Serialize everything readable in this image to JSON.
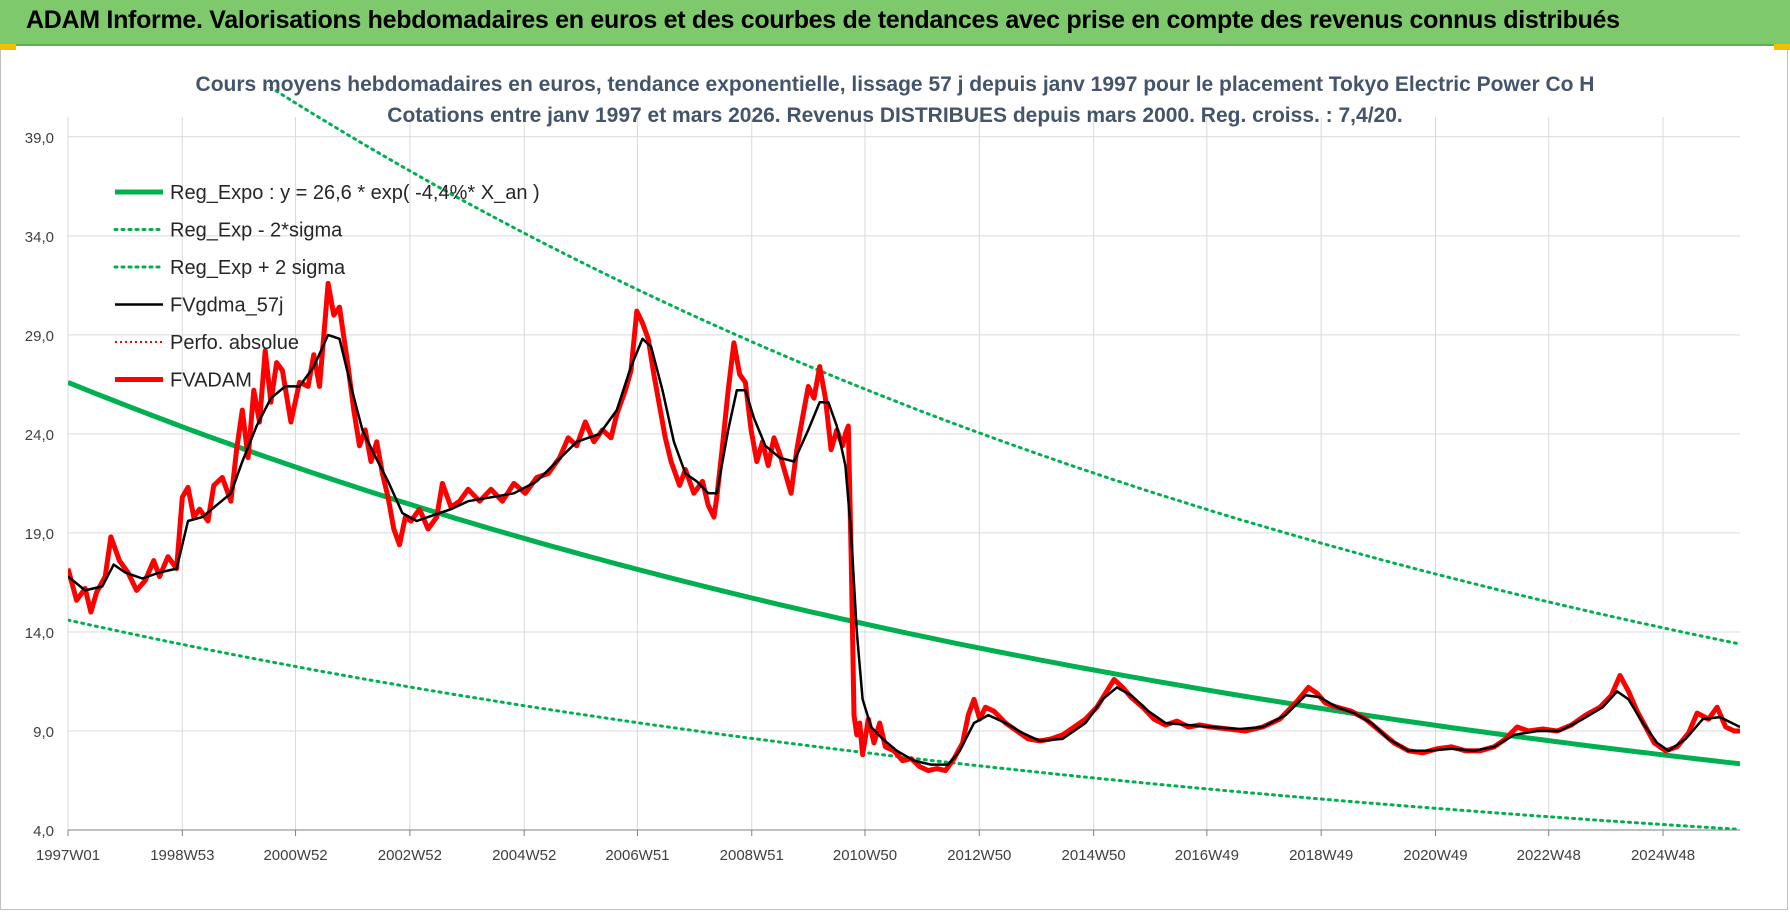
{
  "banner": {
    "title": "ADAM Informe. Valorisations hebdomadaires en euros et des courbes de tendances avec prise en compte des revenus connus distribués"
  },
  "colors": {
    "banner": "#7dc96b",
    "regression": "#00b050",
    "smoothed": "#000000",
    "fvadam": "#ff0000",
    "title": "#44546a"
  },
  "chart_data": {
    "type": "line",
    "title": "Cours moyens hebdomadaires en euros, tendance exponentielle, lissage 57 j depuis janv 1997 pour le placement Tokyo Electric Power Co H",
    "subtitle": "Cotations entre janv 1997 et mars 2026. Revenus DISTRIBUES depuis mars 2000. Reg. croiss. : 7,4/20.",
    "x_range": [
      1997.0,
      2026.25
    ],
    "ylim": [
      4,
      40
    ],
    "y_ticks": [
      "4,0",
      "9,0",
      "14,0",
      "19,0",
      "24,0",
      "29,0",
      "34,0",
      "39,0"
    ],
    "x_ticks": [
      "1997W01",
      "1998W53",
      "2000W52",
      "2002W52",
      "2004W52",
      "2006W51",
      "2008W51",
      "2010W50",
      "2012W50",
      "2014W50",
      "2016W49",
      "2018W49",
      "2020W49",
      "2022W48",
      "2024W48"
    ],
    "grid": true,
    "legend_position": "top-left",
    "series": [
      {
        "name": "Reg_Expo : y = 26,6 * exp( -4,4%* X_an )",
        "style": "solid-thick",
        "color": "#00b050",
        "formula": {
          "a": 26.6,
          "rate": -0.044,
          "x0": 1997.0
        }
      },
      {
        "name": "Reg_Exp - 2*sigma",
        "style": "dotted",
        "color": "#00b050",
        "formula": {
          "a": 14.6,
          "rate": -0.044,
          "x0": 1997.0
        }
      },
      {
        "name": "Reg_Exp + 2 sigma",
        "style": "dotted",
        "color": "#00b050",
        "formula": {
          "a": 48.5,
          "rate": -0.044,
          "x0": 1997.0
        }
      },
      {
        "name": "FVgdma_57j",
        "style": "solid",
        "color": "#000000"
      },
      {
        "name": "Perfo. absolue",
        "style": "dotted-thin",
        "color": "#ff0000"
      },
      {
        "name": "FVADAM",
        "style": "solid-thick",
        "color": "#ff0000"
      }
    ],
    "fvadam_points": [
      [
        1997.0,
        17.2
      ],
      [
        1997.15,
        15.6
      ],
      [
        1997.3,
        16.2
      ],
      [
        1997.4,
        15.0
      ],
      [
        1997.5,
        16.0
      ],
      [
        1997.65,
        16.8
      ],
      [
        1997.75,
        18.8
      ],
      [
        1997.9,
        17.6
      ],
      [
        1998.05,
        17.0
      ],
      [
        1998.2,
        16.1
      ],
      [
        1998.35,
        16.6
      ],
      [
        1998.5,
        17.6
      ],
      [
        1998.6,
        16.8
      ],
      [
        1998.75,
        17.8
      ],
      [
        1998.9,
        17.2
      ],
      [
        1999.0,
        20.8
      ],
      [
        1999.1,
        21.3
      ],
      [
        1999.2,
        19.8
      ],
      [
        1999.3,
        20.2
      ],
      [
        1999.45,
        19.6
      ],
      [
        1999.55,
        21.4
      ],
      [
        1999.7,
        21.8
      ],
      [
        1999.85,
        20.6
      ],
      [
        1999.95,
        23.2
      ],
      [
        2000.05,
        25.2
      ],
      [
        2000.15,
        22.8
      ],
      [
        2000.25,
        26.2
      ],
      [
        2000.35,
        24.6
      ],
      [
        2000.45,
        28.2
      ],
      [
        2000.55,
        25.6
      ],
      [
        2000.65,
        27.6
      ],
      [
        2000.75,
        27.2
      ],
      [
        2000.9,
        24.6
      ],
      [
        2001.05,
        26.6
      ],
      [
        2001.2,
        26.4
      ],
      [
        2001.3,
        28.0
      ],
      [
        2001.4,
        26.4
      ],
      [
        2001.5,
        29.8
      ],
      [
        2001.55,
        31.6
      ],
      [
        2001.65,
        30.0
      ],
      [
        2001.75,
        30.4
      ],
      [
        2001.9,
        27.4
      ],
      [
        2002.0,
        25.2
      ],
      [
        2002.1,
        23.4
      ],
      [
        2002.2,
        24.2
      ],
      [
        2002.3,
        22.6
      ],
      [
        2002.4,
        23.6
      ],
      [
        2002.5,
        22.0
      ],
      [
        2002.6,
        20.8
      ],
      [
        2002.7,
        19.2
      ],
      [
        2002.8,
        18.4
      ],
      [
        2002.9,
        19.8
      ],
      [
        2003.0,
        19.6
      ],
      [
        2003.15,
        20.2
      ],
      [
        2003.3,
        19.2
      ],
      [
        2003.45,
        19.8
      ],
      [
        2003.55,
        21.5
      ],
      [
        2003.7,
        20.3
      ],
      [
        2003.85,
        20.6
      ],
      [
        2004.0,
        21.2
      ],
      [
        2004.2,
        20.6
      ],
      [
        2004.4,
        21.2
      ],
      [
        2004.6,
        20.6
      ],
      [
        2004.8,
        21.5
      ],
      [
        2005.0,
        21.0
      ],
      [
        2005.2,
        21.8
      ],
      [
        2005.4,
        22.0
      ],
      [
        2005.6,
        22.8
      ],
      [
        2005.75,
        23.8
      ],
      [
        2005.9,
        23.4
      ],
      [
        2006.05,
        24.6
      ],
      [
        2006.2,
        23.6
      ],
      [
        2006.35,
        24.2
      ],
      [
        2006.5,
        23.8
      ],
      [
        2006.6,
        25.0
      ],
      [
        2006.75,
        26.2
      ],
      [
        2006.85,
        27.2
      ],
      [
        2006.95,
        30.2
      ],
      [
        2007.05,
        29.6
      ],
      [
        2007.15,
        28.8
      ],
      [
        2007.25,
        27.0
      ],
      [
        2007.35,
        25.4
      ],
      [
        2007.45,
        23.8
      ],
      [
        2007.55,
        22.6
      ],
      [
        2007.7,
        21.4
      ],
      [
        2007.8,
        22.2
      ],
      [
        2007.95,
        21.0
      ],
      [
        2008.1,
        21.6
      ],
      [
        2008.2,
        20.4
      ],
      [
        2008.3,
        19.8
      ],
      [
        2008.35,
        20.8
      ],
      [
        2008.45,
        23.4
      ],
      [
        2008.55,
        26.2
      ],
      [
        2008.65,
        28.6
      ],
      [
        2008.75,
        27.0
      ],
      [
        2008.85,
        26.6
      ],
      [
        2008.95,
        24.2
      ],
      [
        2009.05,
        22.6
      ],
      [
        2009.15,
        23.6
      ],
      [
        2009.25,
        22.4
      ],
      [
        2009.35,
        23.8
      ],
      [
        2009.45,
        23.0
      ],
      [
        2009.55,
        22.0
      ],
      [
        2009.65,
        21.0
      ],
      [
        2009.75,
        23.2
      ],
      [
        2009.85,
        24.8
      ],
      [
        2009.95,
        26.4
      ],
      [
        2010.05,
        25.8
      ],
      [
        2010.15,
        27.4
      ],
      [
        2010.25,
        25.8
      ],
      [
        2010.35,
        23.2
      ],
      [
        2010.45,
        24.2
      ],
      [
        2010.55,
        23.4
      ],
      [
        2010.6,
        24.0
      ],
      [
        2010.65,
        24.4
      ],
      [
        2010.7,
        18.0
      ],
      [
        2010.75,
        9.8
      ],
      [
        2010.8,
        8.8
      ],
      [
        2010.85,
        9.4
      ],
      [
        2010.9,
        7.8
      ],
      [
        2011.0,
        9.6
      ],
      [
        2011.1,
        8.4
      ],
      [
        2011.2,
        9.4
      ],
      [
        2011.3,
        8.2
      ],
      [
        2011.45,
        8.0
      ],
      [
        2011.6,
        7.5
      ],
      [
        2011.75,
        7.6
      ],
      [
        2011.9,
        7.2
      ],
      [
        2012.05,
        7.0
      ],
      [
        2012.2,
        7.1
      ],
      [
        2012.35,
        7.0
      ],
      [
        2012.5,
        7.6
      ],
      [
        2012.65,
        8.4
      ],
      [
        2012.75,
        9.8
      ],
      [
        2012.85,
        10.6
      ],
      [
        2012.95,
        9.6
      ],
      [
        2013.05,
        10.2
      ],
      [
        2013.2,
        10.0
      ],
      [
        2013.4,
        9.4
      ],
      [
        2013.6,
        9.0
      ],
      [
        2013.8,
        8.6
      ],
      [
        2014.0,
        8.5
      ],
      [
        2014.2,
        8.6
      ],
      [
        2014.4,
        8.8
      ],
      [
        2014.6,
        9.2
      ],
      [
        2014.8,
        9.6
      ],
      [
        2015.0,
        10.2
      ],
      [
        2015.15,
        10.9
      ],
      [
        2015.3,
        11.6
      ],
      [
        2015.45,
        11.2
      ],
      [
        2015.6,
        10.7
      ],
      [
        2015.8,
        10.2
      ],
      [
        2016.0,
        9.6
      ],
      [
        2016.2,
        9.3
      ],
      [
        2016.4,
        9.5
      ],
      [
        2016.6,
        9.2
      ],
      [
        2016.8,
        9.3
      ],
      [
        2017.0,
        9.2
      ],
      [
        2017.3,
        9.1
      ],
      [
        2017.6,
        9.0
      ],
      [
        2017.9,
        9.2
      ],
      [
        2018.2,
        9.6
      ],
      [
        2018.5,
        10.5
      ],
      [
        2018.7,
        11.2
      ],
      [
        2018.85,
        10.9
      ],
      [
        2019.0,
        10.4
      ],
      [
        2019.2,
        10.2
      ],
      [
        2019.45,
        10.0
      ],
      [
        2019.7,
        9.6
      ],
      [
        2019.95,
        9.0
      ],
      [
        2020.2,
        8.4
      ],
      [
        2020.45,
        8.0
      ],
      [
        2020.7,
        7.9
      ],
      [
        2020.95,
        8.1
      ],
      [
        2021.2,
        8.2
      ],
      [
        2021.45,
        8.0
      ],
      [
        2021.7,
        8.0
      ],
      [
        2021.95,
        8.2
      ],
      [
        2022.15,
        8.6
      ],
      [
        2022.35,
        9.2
      ],
      [
        2022.55,
        9.0
      ],
      [
        2022.8,
        9.1
      ],
      [
        2023.05,
        9.0
      ],
      [
        2023.3,
        9.3
      ],
      [
        2023.55,
        9.8
      ],
      [
        2023.8,
        10.2
      ],
      [
        2024.0,
        10.8
      ],
      [
        2024.15,
        11.8
      ],
      [
        2024.3,
        11.0
      ],
      [
        2024.45,
        10.0
      ],
      [
        2024.6,
        9.2
      ],
      [
        2024.75,
        8.4
      ],
      [
        2024.95,
        8.0
      ],
      [
        2025.15,
        8.2
      ],
      [
        2025.35,
        8.9
      ],
      [
        2025.5,
        9.9
      ],
      [
        2025.7,
        9.6
      ],
      [
        2025.85,
        10.2
      ],
      [
        2026.0,
        9.2
      ],
      [
        2026.15,
        9.0
      ],
      [
        2026.25,
        9.0
      ]
    ],
    "fvgdma_points": [
      [
        1997.0,
        16.8
      ],
      [
        1997.3,
        16.1
      ],
      [
        1997.6,
        16.3
      ],
      [
        1997.8,
        17.4
      ],
      [
        1998.0,
        17.0
      ],
      [
        1998.3,
        16.7
      ],
      [
        1998.6,
        17.0
      ],
      [
        1998.9,
        17.2
      ],
      [
        1999.1,
        19.6
      ],
      [
        1999.35,
        19.8
      ],
      [
        1999.6,
        20.4
      ],
      [
        1999.85,
        21.0
      ],
      [
        2000.05,
        22.6
      ],
      [
        2000.3,
        24.4
      ],
      [
        2000.55,
        25.8
      ],
      [
        2000.8,
        26.4
      ],
      [
        2001.05,
        26.4
      ],
      [
        2001.3,
        27.4
      ],
      [
        2001.55,
        29.0
      ],
      [
        2001.75,
        28.8
      ],
      [
        2001.95,
        26.4
      ],
      [
        2002.15,
        24.2
      ],
      [
        2002.35,
        23.0
      ],
      [
        2002.6,
        21.6
      ],
      [
        2002.85,
        20.0
      ],
      [
        2003.1,
        19.6
      ],
      [
        2003.4,
        19.9
      ],
      [
        2003.7,
        20.2
      ],
      [
        2004.0,
        20.6
      ],
      [
        2004.4,
        20.8
      ],
      [
        2004.8,
        21.0
      ],
      [
        2005.2,
        21.6
      ],
      [
        2005.55,
        22.6
      ],
      [
        2005.9,
        23.6
      ],
      [
        2006.3,
        24.0
      ],
      [
        2006.6,
        25.2
      ],
      [
        2006.85,
        27.4
      ],
      [
        2007.05,
        28.8
      ],
      [
        2007.2,
        28.4
      ],
      [
        2007.4,
        26.2
      ],
      [
        2007.6,
        23.6
      ],
      [
        2007.8,
        22.0
      ],
      [
        2008.0,
        21.6
      ],
      [
        2008.2,
        21.0
      ],
      [
        2008.35,
        21.0
      ],
      [
        2008.55,
        24.2
      ],
      [
        2008.7,
        26.2
      ],
      [
        2008.85,
        26.2
      ],
      [
        2009.0,
        24.8
      ],
      [
        2009.2,
        23.4
      ],
      [
        2009.45,
        22.8
      ],
      [
        2009.7,
        22.6
      ],
      [
        2009.95,
        24.2
      ],
      [
        2010.15,
        25.6
      ],
      [
        2010.3,
        25.6
      ],
      [
        2010.45,
        24.4
      ],
      [
        2010.6,
        22.4
      ],
      [
        2010.7,
        19.0
      ],
      [
        2010.8,
        14.0
      ],
      [
        2010.9,
        10.6
      ],
      [
        2011.05,
        9.2
      ],
      [
        2011.25,
        8.6
      ],
      [
        2011.5,
        8.0
      ],
      [
        2011.8,
        7.5
      ],
      [
        2012.1,
        7.3
      ],
      [
        2012.4,
        7.3
      ],
      [
        2012.6,
        8.0
      ],
      [
        2012.85,
        9.4
      ],
      [
        2013.1,
        9.8
      ],
      [
        2013.4,
        9.4
      ],
      [
        2013.7,
        8.9
      ],
      [
        2014.0,
        8.5
      ],
      [
        2014.4,
        8.6
      ],
      [
        2014.8,
        9.4
      ],
      [
        2015.1,
        10.6
      ],
      [
        2015.35,
        11.2
      ],
      [
        2015.6,
        10.8
      ],
      [
        2015.9,
        10.0
      ],
      [
        2016.2,
        9.4
      ],
      [
        2016.6,
        9.3
      ],
      [
        2017.0,
        9.2
      ],
      [
        2017.5,
        9.1
      ],
      [
        2017.9,
        9.2
      ],
      [
        2018.3,
        9.8
      ],
      [
        2018.65,
        10.8
      ],
      [
        2018.9,
        10.7
      ],
      [
        2019.2,
        10.2
      ],
      [
        2019.5,
        9.9
      ],
      [
        2019.8,
        9.4
      ],
      [
        2020.1,
        8.6
      ],
      [
        2020.45,
        8.0
      ],
      [
        2020.8,
        8.0
      ],
      [
        2021.2,
        8.1
      ],
      [
        2021.6,
        8.0
      ],
      [
        2021.95,
        8.2
      ],
      [
        2022.3,
        8.8
      ],
      [
        2022.7,
        9.0
      ],
      [
        2023.1,
        9.0
      ],
      [
        2023.5,
        9.6
      ],
      [
        2023.85,
        10.2
      ],
      [
        2024.1,
        11.0
      ],
      [
        2024.3,
        10.6
      ],
      [
        2024.55,
        9.4
      ],
      [
        2024.8,
        8.4
      ],
      [
        2025.0,
        8.0
      ],
      [
        2025.3,
        8.6
      ],
      [
        2025.6,
        9.6
      ],
      [
        2025.9,
        9.7
      ],
      [
        2026.25,
        9.2
      ]
    ]
  }
}
